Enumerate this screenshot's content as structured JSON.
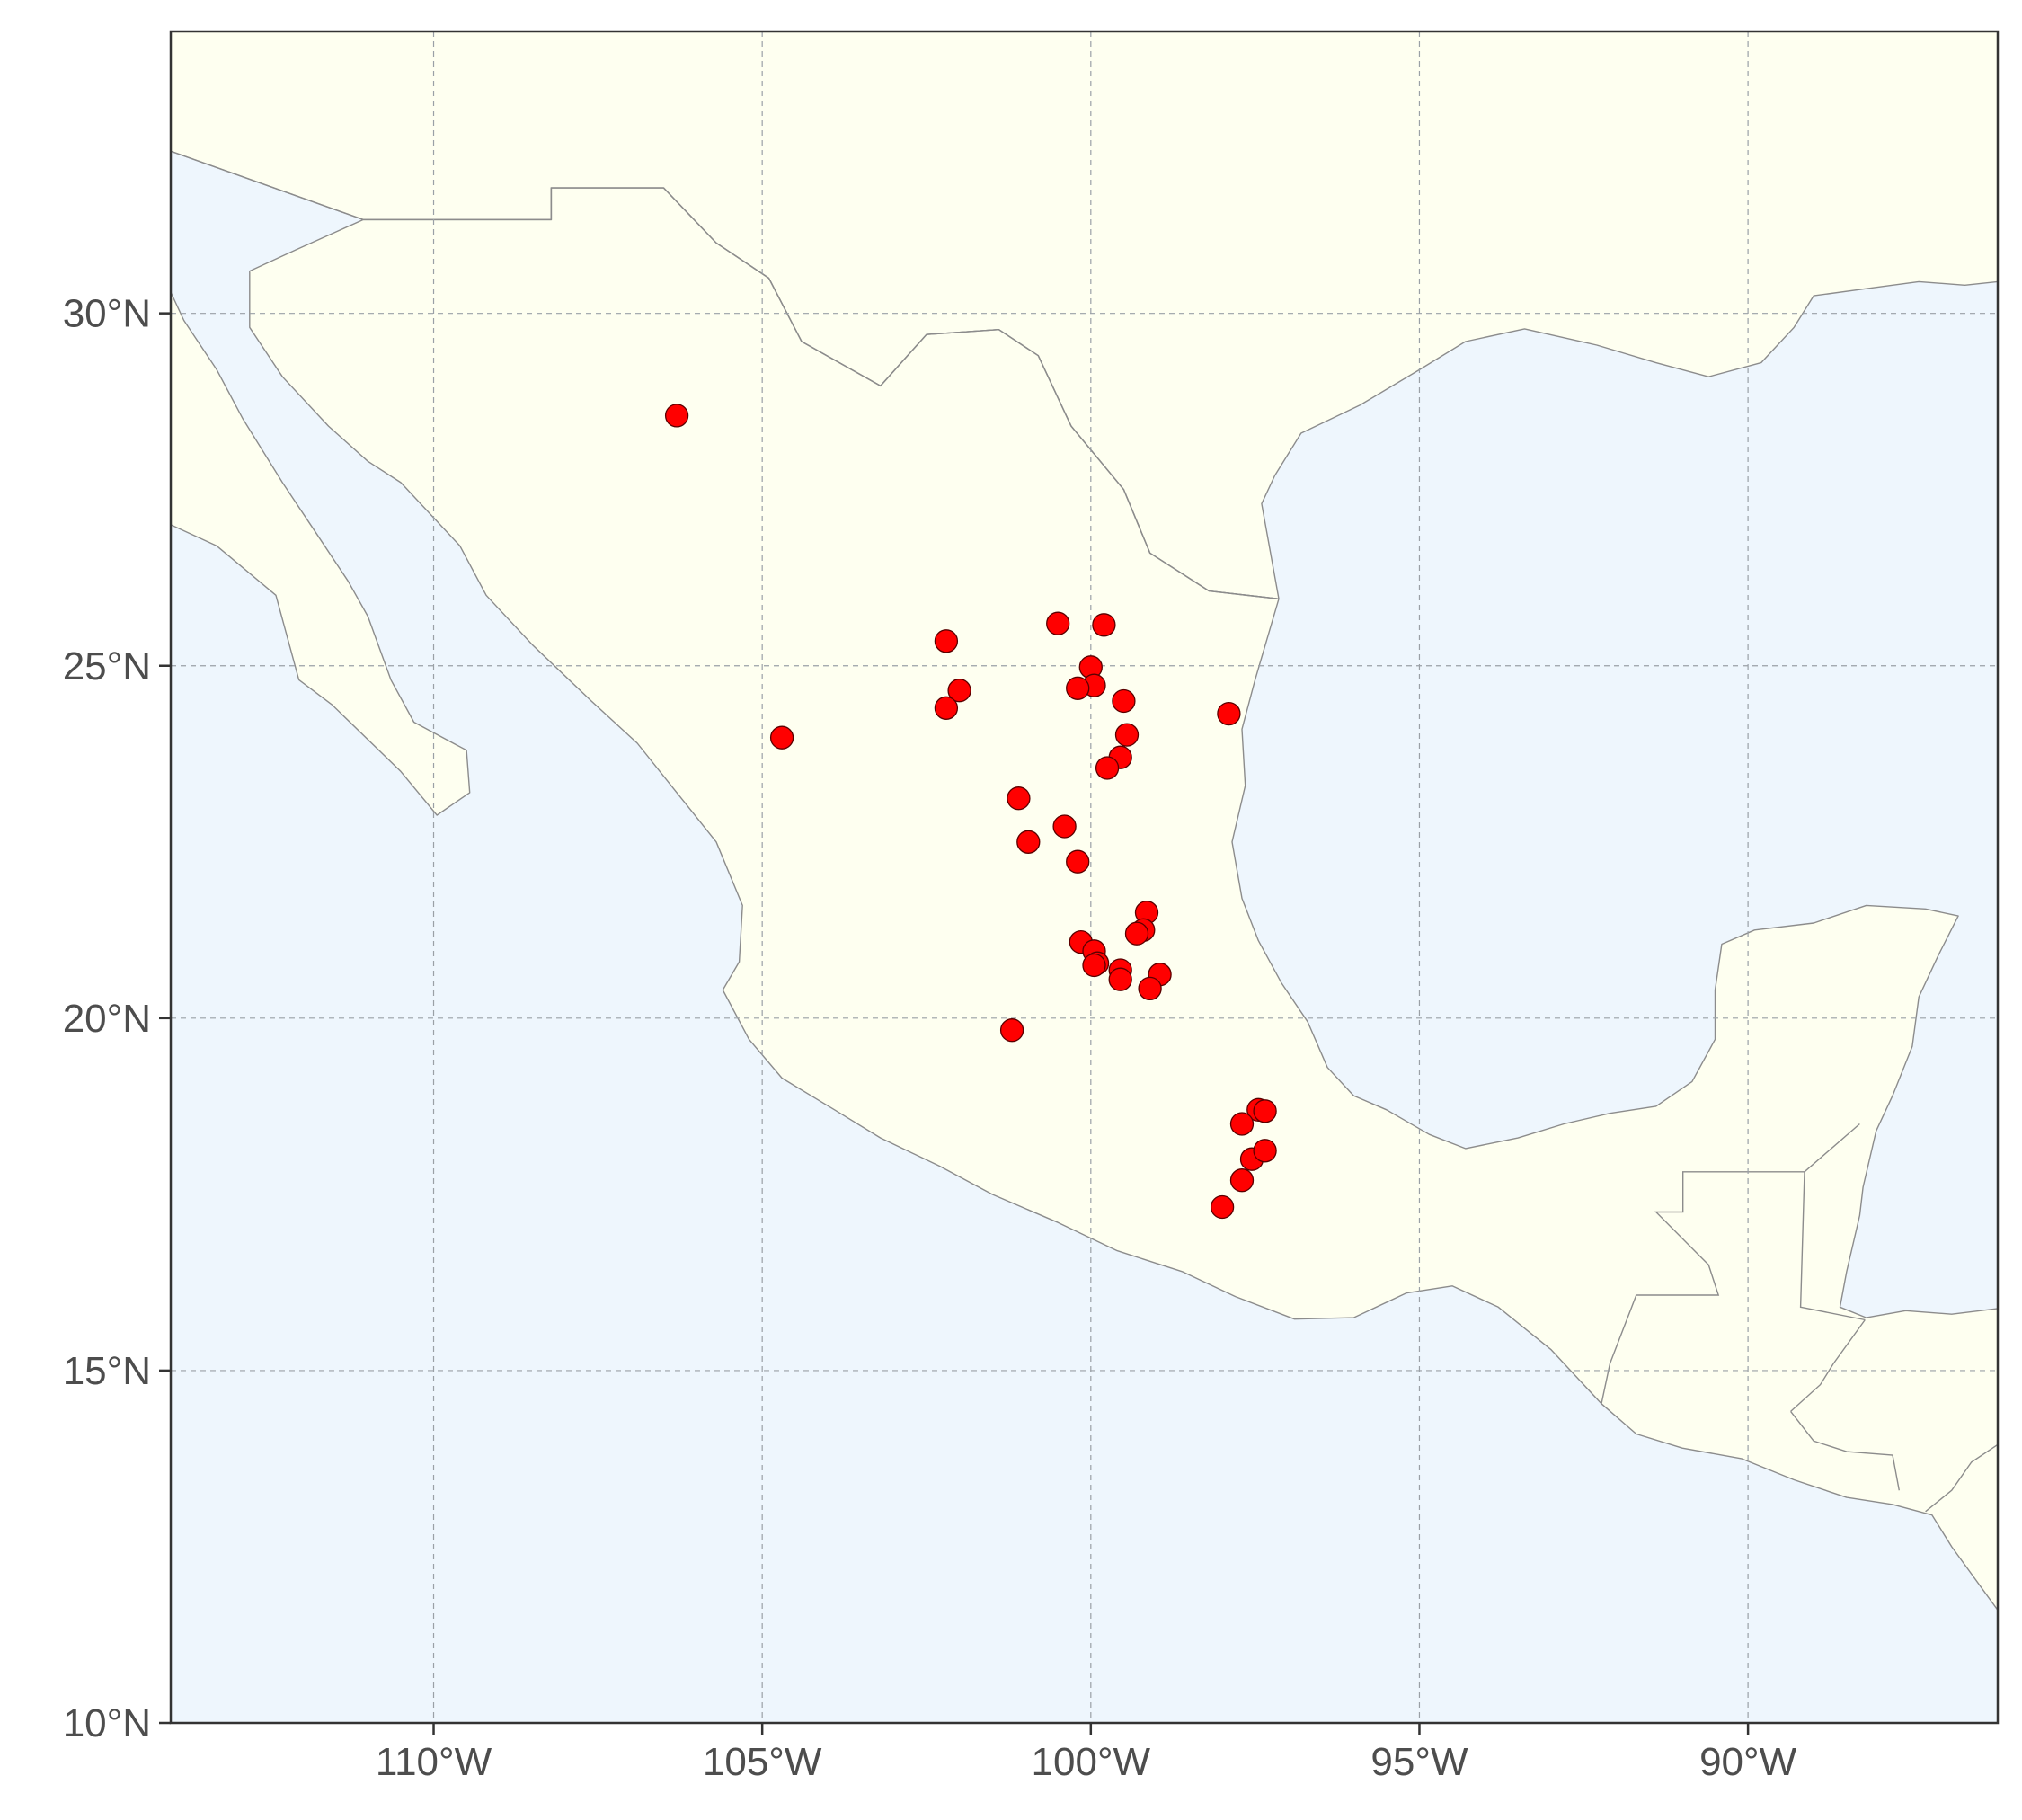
{
  "chart_data": {
    "type": "scatter",
    "title": "",
    "xlabel": "",
    "ylabel": "",
    "xlim": [
      -114,
      -86.2
    ],
    "ylim": [
      10,
      34
    ],
    "grid": true,
    "colors": {
      "ocean": "#eef6fd",
      "land": "#fefff0",
      "points": "#ff0000"
    },
    "x_ticks": [
      {
        "value": -110,
        "label": "110°W"
      },
      {
        "value": -105,
        "label": "105°W"
      },
      {
        "value": -100,
        "label": "100°W"
      },
      {
        "value": -95,
        "label": "95°W"
      },
      {
        "value": -90,
        "label": "90°W"
      }
    ],
    "y_ticks": [
      {
        "value": 10,
        "label": "10°N"
      },
      {
        "value": 15,
        "label": "15°N"
      },
      {
        "value": 20,
        "label": "20°N"
      },
      {
        "value": 25,
        "label": "25°N"
      },
      {
        "value": 30,
        "label": "30°N"
      }
    ],
    "points": [
      {
        "lon": -106.3,
        "lat": 28.55
      },
      {
        "lon": -104.7,
        "lat": 23.98
      },
      {
        "lon": -102.2,
        "lat": 25.35
      },
      {
        "lon": -102.0,
        "lat": 24.65
      },
      {
        "lon": -102.2,
        "lat": 24.4
      },
      {
        "lon": -100.5,
        "lat": 25.6
      },
      {
        "lon": -99.8,
        "lat": 25.58
      },
      {
        "lon": -100.0,
        "lat": 24.98
      },
      {
        "lon": -99.95,
        "lat": 24.72
      },
      {
        "lon": -100.2,
        "lat": 24.68
      },
      {
        "lon": -99.5,
        "lat": 24.5
      },
      {
        "lon": -99.45,
        "lat": 24.02
      },
      {
        "lon": -99.55,
        "lat": 23.7
      },
      {
        "lon": -99.75,
        "lat": 23.55
      },
      {
        "lon": -97.9,
        "lat": 24.32
      },
      {
        "lon": -101.1,
        "lat": 23.12
      },
      {
        "lon": -100.4,
        "lat": 22.72
      },
      {
        "lon": -100.95,
        "lat": 22.5
      },
      {
        "lon": -100.2,
        "lat": 22.22
      },
      {
        "lon": -99.15,
        "lat": 21.5
      },
      {
        "lon": -99.2,
        "lat": 21.25
      },
      {
        "lon": -99.3,
        "lat": 21.2
      },
      {
        "lon": -100.15,
        "lat": 21.08
      },
      {
        "lon": -99.95,
        "lat": 20.95
      },
      {
        "lon": -99.9,
        "lat": 20.78
      },
      {
        "lon": -99.95,
        "lat": 20.75
      },
      {
        "lon": -99.55,
        "lat": 20.68
      },
      {
        "lon": -99.55,
        "lat": 20.55
      },
      {
        "lon": -98.95,
        "lat": 20.62
      },
      {
        "lon": -99.1,
        "lat": 20.42
      },
      {
        "lon": -101.2,
        "lat": 19.83
      },
      {
        "lon": -97.45,
        "lat": 18.7
      },
      {
        "lon": -97.35,
        "lat": 18.68
      },
      {
        "lon": -97.7,
        "lat": 18.5
      },
      {
        "lon": -97.55,
        "lat": 18.0
      },
      {
        "lon": -97.35,
        "lat": 18.12
      },
      {
        "lon": -97.7,
        "lat": 17.7
      },
      {
        "lon": -98.0,
        "lat": 17.32
      }
    ],
    "land_polygons": [
      {
        "id": "north-america",
        "coords": [
          [
            -114,
            32.3
          ],
          [
            -111.07,
            31.33
          ],
          [
            -108.21,
            31.33
          ],
          [
            -108.21,
            31.78
          ],
          [
            -106.5,
            31.78
          ],
          [
            -105.7,
            31.0
          ],
          [
            -104.9,
            30.5
          ],
          [
            -104.4,
            29.6
          ],
          [
            -103.2,
            28.97
          ],
          [
            -102.5,
            29.7
          ],
          [
            -101.4,
            29.77
          ],
          [
            -100.8,
            29.4
          ],
          [
            -100.3,
            28.4
          ],
          [
            -99.5,
            27.5
          ],
          [
            -99.1,
            26.6
          ],
          [
            -98.2,
            26.06
          ],
          [
            -97.14,
            25.95
          ],
          [
            -97.4,
            27.3
          ],
          [
            -97.2,
            27.7
          ],
          [
            -96.8,
            28.3
          ],
          [
            -95.9,
            28.7
          ],
          [
            -95.0,
            29.2
          ],
          [
            -94.3,
            29.6
          ],
          [
            -93.4,
            29.78
          ],
          [
            -92.3,
            29.55
          ],
          [
            -91.4,
            29.3
          ],
          [
            -90.6,
            29.1
          ],
          [
            -89.8,
            29.3
          ],
          [
            -89.3,
            29.8
          ],
          [
            -89.0,
            30.25
          ],
          [
            -88.2,
            30.35
          ],
          [
            -87.4,
            30.45
          ],
          [
            -86.7,
            30.4
          ],
          [
            -86.2,
            30.45
          ],
          [
            -86.2,
            34
          ],
          [
            -114,
            34
          ]
        ]
      },
      {
        "id": "baja-california",
        "coords": [
          [
            -114,
            31.8
          ],
          [
            -114,
            27.0
          ],
          [
            -113.3,
            26.7
          ],
          [
            -112.4,
            26.0
          ],
          [
            -112.05,
            24.8
          ],
          [
            -111.55,
            24.45
          ],
          [
            -110.5,
            23.5
          ],
          [
            -109.95,
            22.88
          ],
          [
            -109.45,
            23.2
          ],
          [
            -109.5,
            23.8
          ],
          [
            -110.3,
            24.2
          ],
          [
            -110.65,
            24.8
          ],
          [
            -111.0,
            25.7
          ],
          [
            -111.3,
            26.2
          ],
          [
            -111.8,
            26.9
          ],
          [
            -112.3,
            27.6
          ],
          [
            -112.9,
            28.5
          ],
          [
            -113.3,
            29.2
          ],
          [
            -113.8,
            29.9
          ],
          [
            -114,
            30.3
          ]
        ]
      },
      {
        "id": "mexico-mainland",
        "coords": [
          [
            -111.07,
            31.33
          ],
          [
            -112.1,
            30.9
          ],
          [
            -112.8,
            30.6
          ],
          [
            -112.8,
            29.8
          ],
          [
            -112.3,
            29.1
          ],
          [
            -111.6,
            28.4
          ],
          [
            -111.0,
            27.9
          ],
          [
            -110.5,
            27.6
          ],
          [
            -109.6,
            26.7
          ],
          [
            -109.2,
            26.0
          ],
          [
            -108.5,
            25.3
          ],
          [
            -107.6,
            24.5
          ],
          [
            -106.9,
            23.9
          ],
          [
            -106.3,
            23.2
          ],
          [
            -105.7,
            22.5
          ],
          [
            -105.3,
            21.6
          ],
          [
            -105.35,
            20.8
          ],
          [
            -105.6,
            20.4
          ],
          [
            -105.2,
            19.7
          ],
          [
            -104.7,
            19.15
          ],
          [
            -103.9,
            18.7
          ],
          [
            -103.2,
            18.3
          ],
          [
            -102.3,
            17.9
          ],
          [
            -101.5,
            17.5
          ],
          [
            -100.5,
            17.1
          ],
          [
            -99.6,
            16.7
          ],
          [
            -98.6,
            16.4
          ],
          [
            -97.8,
            16.05
          ],
          [
            -96.9,
            15.73
          ],
          [
            -96.0,
            15.75
          ],
          [
            -95.2,
            16.1
          ],
          [
            -94.5,
            16.2
          ],
          [
            -93.8,
            15.9
          ],
          [
            -93.0,
            15.3
          ],
          [
            -92.23,
            14.53
          ],
          [
            -91.7,
            14.1
          ],
          [
            -91.0,
            13.9
          ],
          [
            -90.1,
            13.75
          ],
          [
            -89.3,
            13.45
          ],
          [
            -88.5,
            13.2
          ],
          [
            -87.8,
            13.1
          ],
          [
            -87.2,
            12.95
          ],
          [
            -86.9,
            12.5
          ],
          [
            -86.2,
            11.6
          ],
          [
            -86.2,
            15.88
          ],
          [
            -86.9,
            15.8
          ],
          [
            -87.6,
            15.85
          ],
          [
            -88.2,
            15.75
          ],
          [
            -88.6,
            15.9
          ],
          [
            -88.5,
            16.4
          ],
          [
            -88.3,
            17.2
          ],
          [
            -88.25,
            17.6
          ],
          [
            -88.05,
            18.4
          ],
          [
            -87.8,
            18.9
          ],
          [
            -87.5,
            19.6
          ],
          [
            -87.4,
            20.3
          ],
          [
            -87.1,
            20.9
          ],
          [
            -86.8,
            21.45
          ],
          [
            -87.3,
            21.55
          ],
          [
            -88.2,
            21.6
          ],
          [
            -89.0,
            21.35
          ],
          [
            -89.9,
            21.25
          ],
          [
            -90.4,
            21.05
          ],
          [
            -90.5,
            20.4
          ],
          [
            -90.5,
            19.7
          ],
          [
            -90.85,
            19.1
          ],
          [
            -91.4,
            18.75
          ],
          [
            -92.1,
            18.65
          ],
          [
            -92.8,
            18.5
          ],
          [
            -93.5,
            18.3
          ],
          [
            -94.3,
            18.15
          ],
          [
            -94.85,
            18.35
          ],
          [
            -95.5,
            18.7
          ],
          [
            -96.0,
            18.9
          ],
          [
            -96.4,
            19.3
          ],
          [
            -96.7,
            19.95
          ],
          [
            -97.1,
            20.5
          ],
          [
            -97.45,
            21.1
          ],
          [
            -97.7,
            21.7
          ],
          [
            -97.85,
            22.5
          ],
          [
            -97.65,
            23.3
          ],
          [
            -97.7,
            24.1
          ],
          [
            -97.5,
            24.8
          ],
          [
            -97.14,
            25.95
          ],
          [
            -98.2,
            26.06
          ],
          [
            -99.1,
            26.6
          ],
          [
            -99.5,
            27.5
          ],
          [
            -100.3,
            28.4
          ],
          [
            -100.8,
            29.4
          ],
          [
            -101.4,
            29.77
          ],
          [
            -102.5,
            29.7
          ],
          [
            -103.2,
            28.97
          ],
          [
            -104.4,
            29.6
          ],
          [
            -104.9,
            30.5
          ],
          [
            -105.7,
            31.0
          ],
          [
            -106.5,
            31.78
          ],
          [
            -108.21,
            31.78
          ],
          [
            -108.21,
            31.33
          ]
        ]
      }
    ],
    "borders": [
      [
        [
          -114,
          32.3
        ],
        [
          -111.07,
          31.33
        ],
        [
          -108.21,
          31.33
        ],
        [
          -108.21,
          31.78
        ],
        [
          -106.5,
          31.78
        ],
        [
          -105.7,
          31.0
        ],
        [
          -104.9,
          30.5
        ],
        [
          -104.4,
          29.6
        ],
        [
          -103.2,
          28.97
        ],
        [
          -102.5,
          29.7
        ],
        [
          -101.4,
          29.77
        ],
        [
          -100.8,
          29.4
        ],
        [
          -100.3,
          28.4
        ],
        [
          -99.5,
          27.5
        ],
        [
          -99.1,
          26.6
        ],
        [
          -98.2,
          26.06
        ],
        [
          -97.14,
          25.95
        ]
      ],
      [
        [
          -92.23,
          14.53
        ],
        [
          -92.1,
          15.1
        ],
        [
          -91.7,
          16.07
        ],
        [
          -90.45,
          16.07
        ],
        [
          -90.6,
          16.5
        ],
        [
          -91.4,
          17.25
        ],
        [
          -90.99,
          17.25
        ],
        [
          -90.99,
          17.82
        ],
        [
          -89.14,
          17.82
        ],
        [
          -88.3,
          18.5
        ]
      ],
      [
        [
          -89.14,
          17.82
        ],
        [
          -89.2,
          15.9
        ],
        [
          -88.22,
          15.72
        ]
      ],
      [
        [
          -89.35,
          14.42
        ],
        [
          -89.0,
          14.0
        ],
        [
          -88.5,
          13.85
        ],
        [
          -87.8,
          13.8
        ],
        [
          -87.7,
          13.3
        ]
      ],
      [
        [
          -89.35,
          14.42
        ],
        [
          -88.9,
          14.8
        ],
        [
          -88.7,
          15.1
        ],
        [
          -88.22,
          15.72
        ]
      ],
      [
        [
          -87.3,
          13.0
        ],
        [
          -86.9,
          13.3
        ],
        [
          -86.6,
          13.7
        ],
        [
          -86.2,
          13.95
        ]
      ]
    ]
  }
}
